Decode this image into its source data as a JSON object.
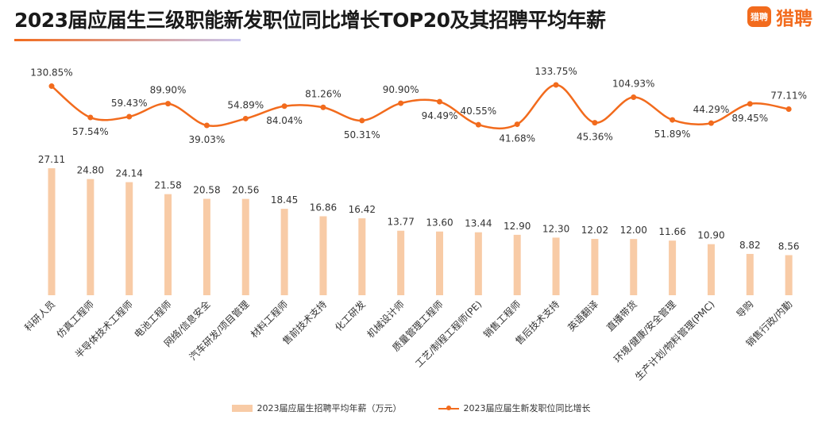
{
  "header": {
    "title": "2023届应届生三级职能新发职位同比增长TOP20及其招聘平均年薪",
    "brand_badge": "猎聘",
    "brand_name": "猎聘"
  },
  "colors": {
    "bar": "#f8cba6",
    "line": "#f26b1d",
    "accent": "#f26b1d"
  },
  "chart_data": {
    "type": "bar",
    "title": "2023届应届生三级职能新发职位同比增长TOP20及其招聘平均年薪",
    "categories": [
      "科研人员",
      "仿真工程师",
      "半导体技术工程师",
      "电池工程师",
      "网络/信息安全",
      "汽车研发/项目管理",
      "材料工程师",
      "售前技术支持",
      "化工研发",
      "机械设计师",
      "质量管理工程师",
      "工艺/制程工程师(PE)",
      "销售工程师",
      "售后技术支持",
      "英语翻译",
      "直播带货",
      "环境/健康/安全管理",
      "生产计划/物料管理(PMC)",
      "导购",
      "销售行政/内勤"
    ],
    "series": [
      {
        "name": "2023届应届生招聘平均年薪（万元）",
        "type": "bar",
        "values": [
          27.11,
          24.8,
          24.14,
          21.58,
          20.58,
          20.56,
          18.45,
          16.86,
          16.42,
          13.77,
          13.6,
          13.44,
          12.9,
          12.3,
          12.02,
          12.0,
          11.66,
          10.9,
          8.82,
          8.56
        ],
        "labels": [
          "27.11",
          "24.80",
          "24.14",
          "21.58",
          "20.58",
          "20.56",
          "18.45",
          "16.86",
          "16.42",
          "13.77",
          "13.60",
          "13.44",
          "12.90",
          "12.30",
          "12.02",
          "12.00",
          "11.66",
          "10.90",
          "8.82",
          "8.56"
        ]
      },
      {
        "name": "2023届应届生新发职位同比增长",
        "type": "line",
        "values": [
          130.85,
          57.54,
          59.43,
          89.9,
          39.03,
          54.89,
          84.04,
          81.26,
          50.31,
          90.9,
          94.49,
          40.55,
          41.68,
          133.75,
          45.36,
          104.93,
          51.89,
          44.29,
          89.45,
          77.11
        ],
        "labels": [
          "130.85%",
          "57.54%",
          "59.43%",
          "89.90%",
          "39.03%",
          "54.89%",
          "84.04%",
          "81.26%",
          "50.31%",
          "90.90%",
          "94.49%",
          "40.55%",
          "41.68%",
          "133.75%",
          "45.36%",
          "104.93%",
          "51.89%",
          "44.29%",
          "89.45%",
          "77.11%"
        ],
        "label_positions": [
          "above",
          "below",
          "above",
          "above",
          "below",
          "above",
          "below",
          "above",
          "below",
          "above",
          "below",
          "above",
          "below",
          "above",
          "below",
          "above",
          "below",
          "above",
          "below",
          "above"
        ]
      }
    ],
    "ylim_bar": [
      0,
      30
    ],
    "ylim_line": [
      0,
      150
    ],
    "grid": false,
    "legend": "bottom-center"
  }
}
